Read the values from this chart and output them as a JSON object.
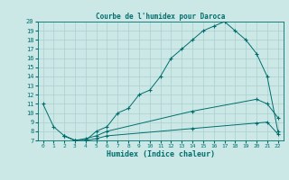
{
  "title": "Courbe de l'humidex pour Daroca",
  "xlabel": "Humidex (Indice chaleur)",
  "xlim": [
    -0.5,
    22.5
  ],
  "ylim": [
    7,
    20
  ],
  "yticks": [
    7,
    8,
    9,
    10,
    11,
    12,
    13,
    14,
    15,
    16,
    17,
    18,
    19,
    20
  ],
  "xticks": [
    0,
    1,
    2,
    3,
    4,
    5,
    6,
    7,
    8,
    9,
    10,
    11,
    12,
    13,
    14,
    15,
    16,
    17,
    18,
    19,
    20,
    21,
    22
  ],
  "bg_color": "#cce8e6",
  "line_color": "#006e6e",
  "grid_color": "#aad0ce",
  "curve1_x": [
    0,
    1,
    2,
    3,
    4,
    5,
    6,
    7,
    8,
    9,
    10,
    11,
    12,
    13,
    14,
    15,
    16,
    17,
    18,
    19,
    20,
    21,
    22
  ],
  "curve1_y": [
    11.0,
    8.5,
    7.5,
    7.0,
    7.0,
    8.0,
    8.5,
    10.0,
    10.5,
    12.0,
    12.5,
    14.0,
    16.0,
    17.0,
    18.0,
    19.0,
    19.5,
    20.0,
    19.0,
    18.0,
    16.5,
    14.0,
    8.0
  ],
  "curve2_x": [
    2,
    3,
    4,
    5,
    6,
    14,
    20,
    21,
    22
  ],
  "curve2_y": [
    7.5,
    7.0,
    7.2,
    7.5,
    8.0,
    10.2,
    11.5,
    11.0,
    9.5
  ],
  "curve3_x": [
    2,
    3,
    4,
    5,
    6,
    14,
    20,
    21,
    22
  ],
  "curve3_y": [
    7.5,
    7.0,
    7.0,
    7.2,
    7.5,
    8.3,
    8.9,
    9.0,
    7.7
  ]
}
